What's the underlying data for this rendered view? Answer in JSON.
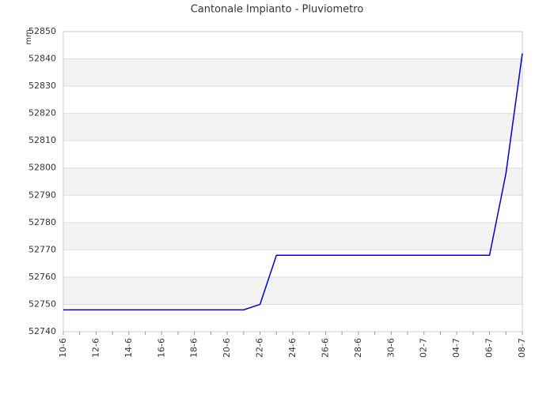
{
  "chart_data": {
    "type": "line",
    "title": "Cantonale Impianto - Pluviometro",
    "y_label": "mm",
    "categories": [
      "10-6",
      null,
      "12-6",
      null,
      "14-6",
      null,
      "16-6",
      null,
      "18-6",
      null,
      "20-6",
      null,
      "22-6",
      null,
      "24-6",
      null,
      "26-6",
      null,
      "28-6",
      null,
      "30-6",
      null,
      "02-7",
      null,
      "04-7",
      null,
      "06-7",
      null,
      "08-7"
    ],
    "series": [
      {
        "name": "Pluviometro",
        "color": "#0000dd",
        "values": [
          52748,
          52748,
          52748,
          52748,
          52748,
          52748,
          52748,
          52748,
          52748,
          52748,
          52748,
          52748,
          52750,
          52768,
          52768,
          52768,
          52768,
          52768,
          52768,
          52768,
          52768,
          52768,
          52768,
          52768,
          52768,
          52768,
          52768,
          52798,
          52842
        ]
      }
    ],
    "ylim": [
      52740,
      52850
    ],
    "yticks": [
      52740,
      52750,
      52760,
      52770,
      52780,
      52790,
      52800,
      52810,
      52820,
      52830,
      52840,
      52850
    ],
    "grid": true
  }
}
